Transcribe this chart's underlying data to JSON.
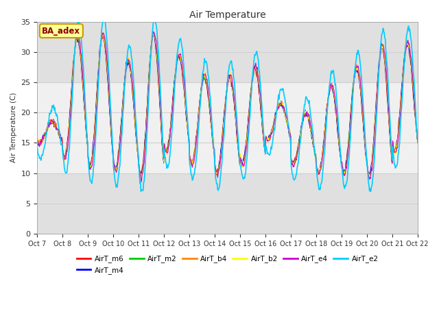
{
  "title": "Air Temperature",
  "ylabel": "Air Temperature (C)",
  "ylim": [
    0,
    35
  ],
  "x_tick_labels": [
    "Oct 7",
    "Oct 8",
    "Oct 9",
    "Oct 10",
    "Oct 11",
    "Oct 12",
    "Oct 13",
    "Oct 14",
    "Oct 15",
    "Oct 16",
    "Oct 17",
    "Oct 18",
    "Oct 19",
    "Oct 20",
    "Oct 21",
    "Oct 22"
  ],
  "annotation_text": "BA_adex",
  "annotation_bg": "#ffff99",
  "annotation_border": "#cc9900",
  "annotation_text_color": "#880000",
  "series": [
    {
      "name": "AirT_m6",
      "color": "#ff0000"
    },
    {
      "name": "AirT_m4",
      "color": "#0000ff"
    },
    {
      "name": "AirT_m2",
      "color": "#00cc00"
    },
    {
      "name": "AirT_b4",
      "color": "#ff8800"
    },
    {
      "name": "AirT_b2",
      "color": "#ffff00"
    },
    {
      "name": "AirT_e4",
      "color": "#cc00cc"
    },
    {
      "name": "AirT_e2",
      "color": "#00ccff"
    }
  ],
  "shading_lower": [
    0,
    10
  ],
  "shading_upper": [
    25,
    35
  ],
  "shading_color": "#e0e0e0",
  "bg_color": "#f0f0f0",
  "grid_color": "#d0d0d0",
  "day_peaks": [
    18.5,
    32.5,
    33.0,
    28.5,
    33.0,
    29.5,
    26.0,
    26.0,
    27.5,
    21.5,
    20.0,
    24.5,
    27.5,
    31.0,
    31.5
  ],
  "day_troughs": [
    15.0,
    12.5,
    11.0,
    10.5,
    9.5,
    13.5,
    11.5,
    10.0,
    11.5,
    15.5,
    11.5,
    10.0,
    10.0,
    9.5,
    13.5
  ],
  "e2_extra_amp": 2.5,
  "n_days": 15,
  "pts_per_day": 48
}
